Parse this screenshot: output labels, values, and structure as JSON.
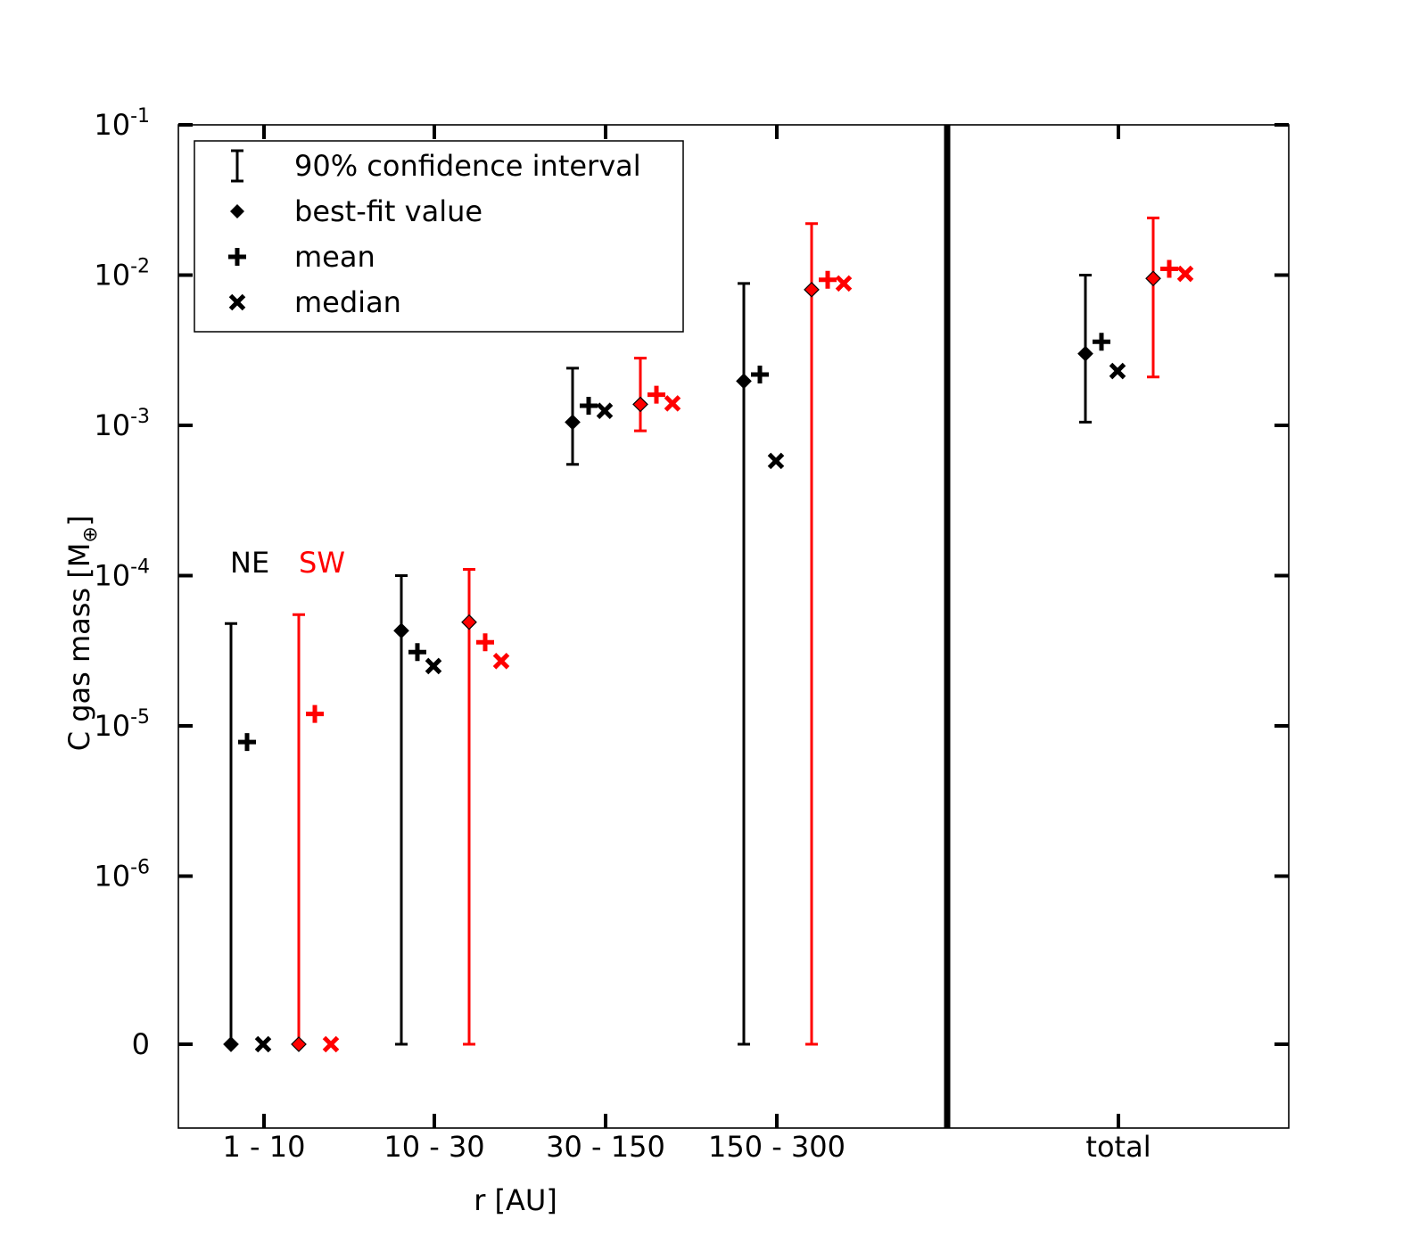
{
  "chart_data": {
    "type": "scatter",
    "xlabel": "r [AU]",
    "ylabel": "C gas mass [M",
    "ylabel_subscript": "⊕",
    "ylabel_suffix": "]",
    "y_scale": "symlog",
    "ylim": [
      -3e-07,
      0.1
    ],
    "categories": [
      "1 - 10",
      "10 - 30",
      "30 - 150",
      "150 - 300",
      "total"
    ],
    "y_ticks": [
      {
        "value": 0.1,
        "base": "10",
        "exp": "-1"
      },
      {
        "value": 0.01,
        "base": "10",
        "exp": "-2"
      },
      {
        "value": 0.001,
        "base": "10",
        "exp": "-3"
      },
      {
        "value": 0.0001,
        "base": "10",
        "exp": "-4"
      },
      {
        "value": 1e-05,
        "base": "10",
        "exp": "-5"
      },
      {
        "value": 1e-06,
        "base": "10",
        "exp": "-6"
      },
      {
        "value": 0,
        "base": "0",
        "exp": ""
      }
    ],
    "series": [
      {
        "name": "NE",
        "color": "#000000",
        "points": [
          {
            "category": "1 - 10",
            "ci": [
              0,
              4.8e-05
            ],
            "best_fit": 0,
            "mean": 7.8e-06,
            "median": 0
          },
          {
            "category": "10 - 30",
            "ci": [
              0,
              0.0001
            ],
            "best_fit": 4.3e-05,
            "mean": 3.1e-05,
            "median": 2.5e-05
          },
          {
            "category": "30 - 150",
            "ci": [
              0.00055,
              0.0024
            ],
            "best_fit": 0.00105,
            "mean": 0.00135,
            "median": 0.00125
          },
          {
            "category": "150 - 300",
            "ci": [
              0,
              0.0088
            ],
            "best_fit": 0.00197,
            "mean": 0.00218,
            "median": 0.00058
          },
          {
            "category": "total",
            "ci": [
              0.00105,
              0.01
            ],
            "best_fit": 0.003,
            "mean": 0.0036,
            "median": 0.0023
          }
        ]
      },
      {
        "name": "SW",
        "color": "#ff0000",
        "points": [
          {
            "category": "1 - 10",
            "ci": [
              0,
              5.5e-05
            ],
            "best_fit": 0,
            "mean": 1.2e-05,
            "median": 0
          },
          {
            "category": "10 - 30",
            "ci": [
              0,
              0.00011
            ],
            "best_fit": 4.9e-05,
            "mean": 3.6e-05,
            "median": 2.7e-05
          },
          {
            "category": "30 - 150",
            "ci": [
              0.00092,
              0.0028
            ],
            "best_fit": 0.00138,
            "mean": 0.0016,
            "median": 0.0014
          },
          {
            "category": "150 - 300",
            "ci": [
              0,
              0.022
            ],
            "best_fit": 0.008,
            "mean": 0.0093,
            "median": 0.0088
          },
          {
            "category": "total",
            "ci": [
              0.0021,
              0.024
            ],
            "best_fit": 0.0095,
            "mean": 0.011,
            "median": 0.0102
          }
        ]
      }
    ],
    "legend": {
      "placement": "top-left",
      "entries": [
        {
          "marker": "errorbar",
          "label": "90% confidence interval"
        },
        {
          "marker": "diamond",
          "label": "best-fit value"
        },
        {
          "marker": "plus",
          "label": "mean"
        },
        {
          "marker": "cross",
          "label": "median"
        }
      ]
    },
    "annotations": [
      {
        "text": "NE",
        "color": "#000000"
      },
      {
        "text": "SW",
        "color": "#ff0000"
      }
    ],
    "divider": "between 150 - 300 and total"
  }
}
